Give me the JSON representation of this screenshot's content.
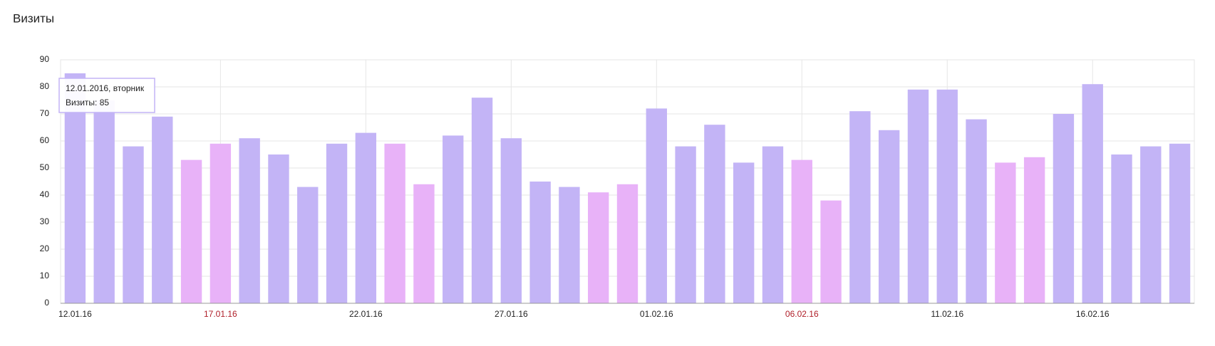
{
  "chart_data": {
    "type": "bar",
    "title": "Визиты",
    "categories": [
      "12.01.16",
      null,
      null,
      null,
      null,
      "17.01.16",
      null,
      null,
      null,
      null,
      "22.01.16",
      null,
      null,
      null,
      null,
      "27.01.16",
      null,
      null,
      null,
      null,
      "01.02.16",
      null,
      null,
      null,
      null,
      "06.02.16",
      null,
      null,
      null,
      null,
      "11.02.16",
      null,
      null,
      null,
      null,
      "16.02.16",
      null,
      null,
      null
    ],
    "values": [
      85,
      75,
      58,
      69,
      53,
      59,
      61,
      55,
      43,
      59,
      63,
      59,
      44,
      62,
      76,
      61,
      45,
      43,
      41,
      44,
      72,
      58,
      66,
      52,
      58,
      53,
      38,
      71,
      64,
      79,
      79,
      68,
      52,
      54,
      70,
      81,
      55,
      58,
      59
    ],
    "color": "#c3b4f6",
    "colors": [
      "#c3b4f6",
      "#c3b4f6",
      "#c3b4f6",
      "#c3b4f6",
      "#e8b2f8",
      "#e8b2f8",
      "#c3b4f6",
      "#c3b4f6",
      "#c3b4f6",
      "#c3b4f6",
      "#c3b4f6",
      "#e8b2f8",
      "#e8b2f8",
      "#c3b4f6",
      "#c3b4f6",
      "#c3b4f6",
      "#c3b4f6",
      "#c3b4f6",
      "#e8b2f8",
      "#e8b2f8",
      "#c3b4f6",
      "#c3b4f6",
      "#c3b4f6",
      "#c3b4f6",
      "#c3b4f6",
      "#e8b2f8",
      "#e8b2f8",
      "#c3b4f6",
      "#c3b4f6",
      "#c3b4f6",
      "#c3b4f6",
      "#c3b4f6",
      "#e8b2f8",
      "#e8b2f8",
      "#c3b4f6",
      "#c3b4f6",
      "#c3b4f6",
      "#c3b4f6",
      "#c3b4f6"
    ],
    "ylim": [
      0,
      90
    ],
    "yticks": [
      0,
      10,
      20,
      30,
      40,
      50,
      60,
      70,
      80,
      90
    ],
    "grid": true,
    "tooltip": {
      "title": "12.01.2016, вторник",
      "text": "Визиты: 85"
    }
  }
}
